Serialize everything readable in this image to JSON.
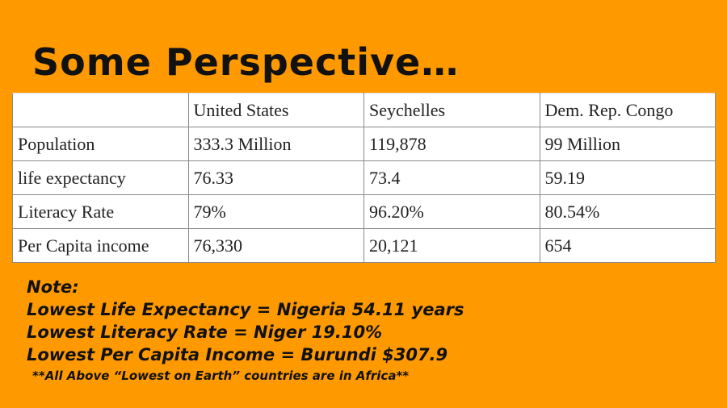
{
  "title": "Some Perspective…",
  "table": {
    "header": [
      "United States",
      "Seychelles",
      "Dem. Rep. Congo"
    ],
    "rows": [
      [
        "Population",
        "333.3 Million",
        "119,878",
        "99 Million"
      ],
      [
        "life expectancy",
        "76.33",
        "73.4",
        "59.19"
      ],
      [
        "Literacy Rate",
        "79%",
        "96.20%",
        "80.54%"
      ],
      [
        "Per Capita income",
        "76,330",
        "20,121",
        "654"
      ]
    ]
  },
  "notes": {
    "heading": "Note:",
    "lines": [
      "Lowest Life Expectancy = Nigeria 54.11 years",
      "Lowest Literacy Rate = Niger 19.10%",
      "Lowest Per Capita Income = Burundi $307.9"
    ],
    "footer": "**All Above “Lowest on Earth” countries are in Africa**"
  }
}
